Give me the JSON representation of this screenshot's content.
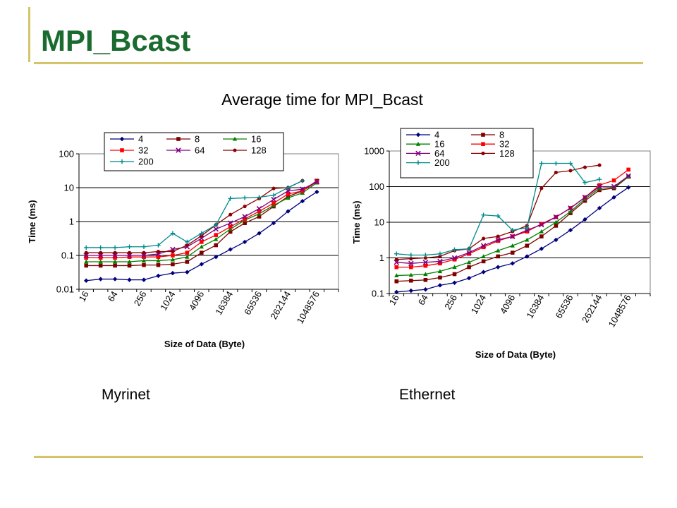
{
  "slide": {
    "title": "MPI_Bcast",
    "subtitle": "Average time for MPI_Bcast",
    "labels": [
      "Myrinet",
      "Ethernet"
    ]
  },
  "chart_data": [
    {
      "type": "line",
      "panel": "Myrinet",
      "xlabel": "Size of Data (Byte)",
      "ylabel": "Time (ms)",
      "yscale": "log",
      "ylim": [
        0.01,
        100
      ],
      "ytick_labels": [
        "0.01",
        "0.1",
        "1",
        "10",
        "100"
      ],
      "x": [
        16,
        32,
        64,
        128,
        256,
        512,
        1024,
        2048,
        4096,
        8192,
        16384,
        32768,
        65536,
        131072,
        262144,
        524288,
        1048576,
        2097152
      ],
      "xtick_labels": [
        "16",
        "64",
        "256",
        "1024",
        "4096",
        "16384",
        "65536",
        "262144",
        "1048576"
      ],
      "legend_position": "top",
      "grid": true,
      "series": [
        {
          "name": "4",
          "color": "#00007f",
          "marker": "diamond",
          "values": [
            0.018,
            0.02,
            0.02,
            0.019,
            0.019,
            0.025,
            0.03,
            0.032,
            0.055,
            0.09,
            0.15,
            0.25,
            0.45,
            0.9,
            2.0,
            4.0,
            7.5,
            null
          ]
        },
        {
          "name": "8",
          "color": "#7f0000",
          "marker": "square",
          "values": [
            0.05,
            0.05,
            0.05,
            0.05,
            0.052,
            0.052,
            0.055,
            0.065,
            0.12,
            0.2,
            0.5,
            0.9,
            1.4,
            2.8,
            5.5,
            8.0,
            16.0,
            null
          ]
        },
        {
          "name": "16",
          "color": "#008000",
          "marker": "triangle",
          "values": [
            0.065,
            0.065,
            0.065,
            0.065,
            0.07,
            0.07,
            0.075,
            0.09,
            0.18,
            0.3,
            0.6,
            1.1,
            1.7,
            3.0,
            5.0,
            7.0,
            14.0,
            null
          ]
        },
        {
          "name": "32",
          "color": "#ff0000",
          "marker": "square",
          "values": [
            0.085,
            0.085,
            0.085,
            0.09,
            0.09,
            0.09,
            0.1,
            0.12,
            0.25,
            0.4,
            0.7,
            1.2,
            2.0,
            3.5,
            6.5,
            8.0,
            15.0,
            null
          ]
        },
        {
          "name": "64",
          "color": "#800080",
          "marker": "x",
          "values": [
            0.1,
            0.1,
            0.1,
            0.1,
            0.1,
            0.11,
            0.15,
            0.18,
            0.32,
            0.6,
            0.9,
            1.4,
            2.4,
            4.5,
            8.0,
            9.0,
            15.0,
            null
          ]
        },
        {
          "name": "128",
          "color": "#8b0000",
          "marker": "circle",
          "values": [
            0.12,
            0.12,
            0.12,
            0.12,
            0.12,
            0.13,
            0.13,
            0.2,
            0.38,
            0.8,
            1.6,
            2.8,
            4.8,
            9.5,
            10.0,
            16.0,
            null,
            null
          ]
        },
        {
          "name": "200",
          "color": "#008b8b",
          "marker": "plus",
          "values": [
            0.17,
            0.17,
            0.17,
            0.18,
            0.18,
            0.2,
            0.45,
            0.25,
            0.45,
            0.8,
            4.8,
            5.0,
            5.2,
            6.0,
            10.0,
            16.0,
            null,
            null
          ]
        }
      ]
    },
    {
      "type": "line",
      "panel": "Ethernet",
      "xlabel": "Size of Data (Byte)",
      "ylabel": "Time (ms)",
      "yscale": "log",
      "ylim": [
        0.1,
        1000
      ],
      "ytick_labels": [
        "0.1",
        "1",
        "10",
        "100",
        "1000"
      ],
      "x": [
        16,
        32,
        64,
        128,
        256,
        512,
        1024,
        2048,
        4096,
        8192,
        16384,
        32768,
        65536,
        131072,
        262144,
        524288,
        1048576,
        2097152
      ],
      "xtick_labels": [
        "16",
        "64",
        "256",
        "1024",
        "4096",
        "16384",
        "65536",
        "262144",
        "1048576"
      ],
      "legend_position": "top",
      "grid": true,
      "series": [
        {
          "name": "4",
          "color": "#00007f",
          "marker": "diamond",
          "values": [
            0.11,
            0.12,
            0.13,
            0.17,
            0.2,
            0.27,
            0.4,
            0.55,
            0.7,
            1.1,
            1.8,
            3.2,
            6.0,
            12.0,
            25.0,
            50.0,
            95.0,
            null
          ]
        },
        {
          "name": "8",
          "color": "#7f0000",
          "marker": "square",
          "values": [
            0.22,
            0.23,
            0.24,
            0.28,
            0.35,
            0.55,
            0.8,
            1.1,
            1.4,
            2.2,
            4.0,
            8.0,
            18.0,
            40.0,
            80.0,
            90.0,
            190.0,
            null
          ]
        },
        {
          "name": "16",
          "color": "#008000",
          "marker": "triangle",
          "values": [
            0.32,
            0.33,
            0.35,
            0.42,
            0.55,
            0.75,
            1.1,
            1.6,
            2.2,
            3.2,
            5.5,
            10.0,
            20.0,
            45.0,
            90.0,
            95.0,
            190.0,
            null
          ]
        },
        {
          "name": "32",
          "color": "#ff0000",
          "marker": "square",
          "values": [
            0.55,
            0.55,
            0.6,
            0.7,
            0.9,
            1.3,
            2.0,
            3.0,
            4.0,
            5.5,
            9.0,
            14.0,
            25.0,
            50.0,
            110.0,
            150.0,
            300.0,
            null
          ]
        },
        {
          "name": "64",
          "color": "#800080",
          "marker": "x",
          "values": [
            0.75,
            0.7,
            0.75,
            0.8,
            1.0,
            1.4,
            2.2,
            3.2,
            4.0,
            6.0,
            8.5,
            14.0,
            25.0,
            50.0,
            100.0,
            100.0,
            200.0,
            null
          ]
        },
        {
          "name": "128",
          "color": "#8b0000",
          "marker": "circle",
          "values": [
            0.9,
            0.95,
            1.0,
            1.1,
            1.6,
            1.8,
            3.5,
            4.0,
            5.5,
            8.0,
            90.0,
            250.0,
            280.0,
            350.0,
            400.0,
            null,
            null,
            null
          ]
        },
        {
          "name": "200",
          "color": "#008b8b",
          "marker": "plus",
          "values": [
            1.3,
            1.2,
            1.2,
            1.3,
            1.7,
            1.8,
            16.0,
            15.0,
            6.0,
            7.0,
            450.0,
            450.0,
            450.0,
            130.0,
            160.0,
            null,
            null,
            null
          ]
        }
      ]
    }
  ]
}
